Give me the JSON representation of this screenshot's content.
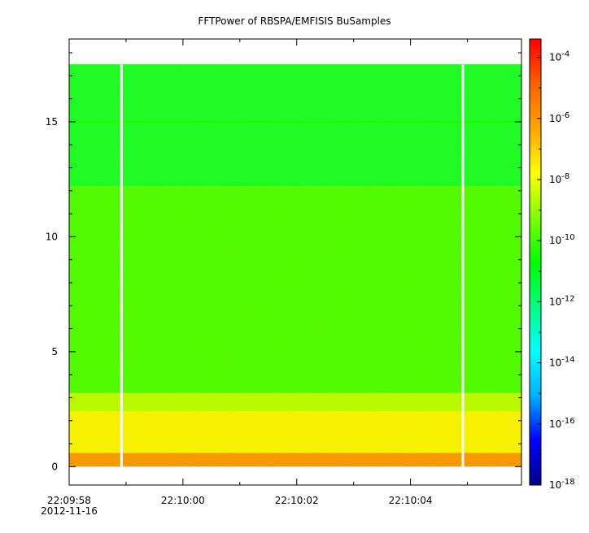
{
  "chart_data": {
    "type": "heatmap",
    "title": "FFTPower of RBSPA/EMFISIS  BuSamples",
    "xlabel": "",
    "ylabel": "",
    "x_tick_labels": [
      "22:09:58",
      "22:10:00",
      "22:10:02",
      "22:10:04"
    ],
    "x_date_label": "2012-11-16",
    "x_tick_values_s": [
      0,
      2,
      4,
      6
    ],
    "x_range_s": [
      0,
      7.95
    ],
    "ylim": [
      -0.8,
      18.6
    ],
    "y_ticks": [
      0,
      5,
      10,
      15
    ],
    "colorbar": {
      "scale": "log",
      "range_exp": [
        -18,
        -3.4
      ],
      "tick_exponents": [
        -18,
        -16,
        -14,
        -12,
        -10,
        -8,
        -6,
        -4
      ],
      "tick_base": "10",
      "colors": [
        "#00008b",
        "#0000ff",
        "#00b0ff",
        "#00ffff",
        "#00ff80",
        "#00ff00",
        "#80ff00",
        "#ffff00",
        "#ffa500",
        "#ff6000",
        "#ff0000"
      ]
    },
    "data_extent": {
      "y": [
        0,
        17.5
      ]
    },
    "gaps_s": [
      0.92,
      6.92
    ],
    "bands": [
      {
        "y": [
          0,
          0.6
        ],
        "log_power": -5.8
      },
      {
        "y": [
          0.6,
          2.4
        ],
        "log_power": -7.6
      },
      {
        "y": [
          2.4,
          3.2
        ],
        "log_power": -8.6
      },
      {
        "y": [
          3.2,
          12.2
        ],
        "log_power": -10.0
      },
      {
        "y": [
          12.2,
          17.5
        ],
        "log_power": -11.2
      }
    ],
    "line_15_log_power": -10.4
  }
}
